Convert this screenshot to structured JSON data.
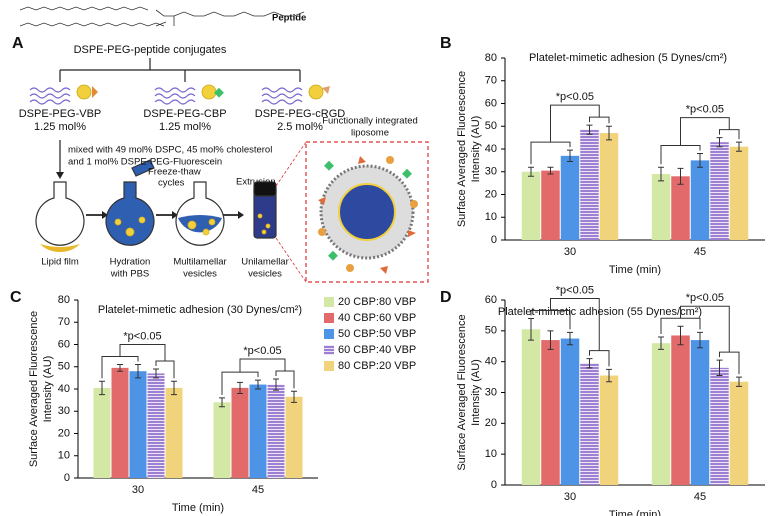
{
  "diagram": {
    "panel": "A",
    "structure_label": "Peptide",
    "title": "DSPE-PEG-peptide conjugates",
    "conjugates": [
      {
        "name": "DSPE-PEG-VBP",
        "amount": "1.25 mol%"
      },
      {
        "name": "DSPE-PEG-CBP",
        "amount": "1.25 mol%"
      },
      {
        "name": "DSPE-PEG-cRGD",
        "amount": "2.5 mol%"
      }
    ],
    "mixing": [
      "mixed with 49 mol% DSPC, 45 mol% cholesterol",
      "and 1 mol% DSPE-PEG-Fluorescein"
    ],
    "steps": [
      [
        "Freeze-thaw",
        "cycles"
      ],
      [
        "Extrusion"
      ]
    ],
    "stages": [
      [
        "Lipid film"
      ],
      [
        "Hydration",
        "with PBS"
      ],
      [
        "Multilamellar",
        "vesicles"
      ],
      [
        "Unilamellar",
        "vesicles"
      ]
    ],
    "liposome": [
      "Functionally integrated",
      "liposome"
    ]
  },
  "chart_data": [
    {
      "type": "bar",
      "panel": "B",
      "title": "Platelet-mimetic adhesion (5 Dynes/cm²)",
      "ylabel": [
        "Surface Averaged Fluorescence",
        "Intensity (AU)"
      ],
      "xlabel": "Time (min)",
      "categories": [
        "30",
        "45"
      ],
      "ylim": [
        0,
        80
      ],
      "yticks": [
        0,
        10,
        20,
        30,
        40,
        50,
        60,
        70,
        80
      ],
      "series": [
        {
          "color": "#d4e8a6",
          "values": [
            30,
            29
          ],
          "errors": [
            2,
            3
          ]
        },
        {
          "color": "#e26a6a",
          "values": [
            30.5,
            28
          ],
          "errors": [
            1.5,
            3.5
          ]
        },
        {
          "color": "#4d93e6",
          "values": [
            37,
            35
          ],
          "errors": [
            2.5,
            3
          ]
        },
        {
          "color": "#9d80d2",
          "hatch": true,
          "values": [
            48.5,
            43
          ],
          "errors": [
            2,
            2
          ]
        },
        {
          "color": "#f1d37c",
          "values": [
            47,
            41
          ],
          "errors": [
            3,
            2
          ]
        }
      ],
      "annotations": [
        "*p<0.05",
        "*p<0.05"
      ]
    },
    {
      "type": "bar",
      "panel": "C",
      "title": "Platelet-mimetic adhesion (30 Dynes/cm²)",
      "ylabel": [
        "Surface Averaged Fluorescence",
        "Intensity (AU)"
      ],
      "xlabel": "Time (min)",
      "categories": [
        "30",
        "45"
      ],
      "ylim": [
        0,
        80
      ],
      "yticks": [
        0,
        10,
        20,
        30,
        40,
        50,
        60,
        70,
        80
      ],
      "legend": "right",
      "series": [
        {
          "name": "20 CBP:80 VBP",
          "color": "#d4e8a6",
          "values": [
            40.5,
            34
          ],
          "errors": [
            3,
            2
          ]
        },
        {
          "name": "40 CBP:60 VBP",
          "color": "#e26a6a",
          "values": [
            49.5,
            40.5
          ],
          "errors": [
            1.5,
            2.5
          ]
        },
        {
          "name": "50 CBP:50 VBP",
          "color": "#4d93e6",
          "values": [
            48,
            42
          ],
          "errors": [
            3,
            2
          ]
        },
        {
          "name": "60 CBP:40 VBP",
          "color": "#9d80d2",
          "hatch": true,
          "values": [
            47,
            42
          ],
          "errors": [
            2,
            2.5
          ]
        },
        {
          "name": "80 CBP:20 VBP",
          "color": "#f1d37c",
          "values": [
            40.5,
            36.5
          ],
          "errors": [
            3,
            2.5
          ]
        }
      ],
      "annotations": [
        "*p<0.05",
        "*p<0.05"
      ]
    },
    {
      "type": "bar",
      "panel": "D",
      "title": "Platelet-mimetic adhesion (55 Dynes/cm²)",
      "ylabel": [
        "Surface Averaged Fluorescence",
        "Intensity (AU)"
      ],
      "xlabel": "Time (min)",
      "categories": [
        "30",
        "45"
      ],
      "ylim": [
        0,
        60
      ],
      "yticks": [
        0,
        10,
        20,
        30,
        40,
        50,
        60
      ],
      "series": [
        {
          "color": "#d4e8a6",
          "values": [
            50.5,
            46
          ],
          "errors": [
            3.5,
            2
          ]
        },
        {
          "color": "#e26a6a",
          "values": [
            47,
            48.5
          ],
          "errors": [
            3,
            3
          ]
        },
        {
          "color": "#4d93e6",
          "values": [
            47.5,
            47
          ],
          "errors": [
            2,
            2.5
          ]
        },
        {
          "color": "#9d80d2",
          "hatch": true,
          "values": [
            39.5,
            38
          ],
          "errors": [
            1.5,
            2.5
          ]
        },
        {
          "color": "#f1d37c",
          "values": [
            35.5,
            33.5
          ],
          "errors": [
            2,
            1.5
          ]
        }
      ],
      "annotations": [
        "*p<0.05",
        "*p<0.05"
      ]
    }
  ]
}
